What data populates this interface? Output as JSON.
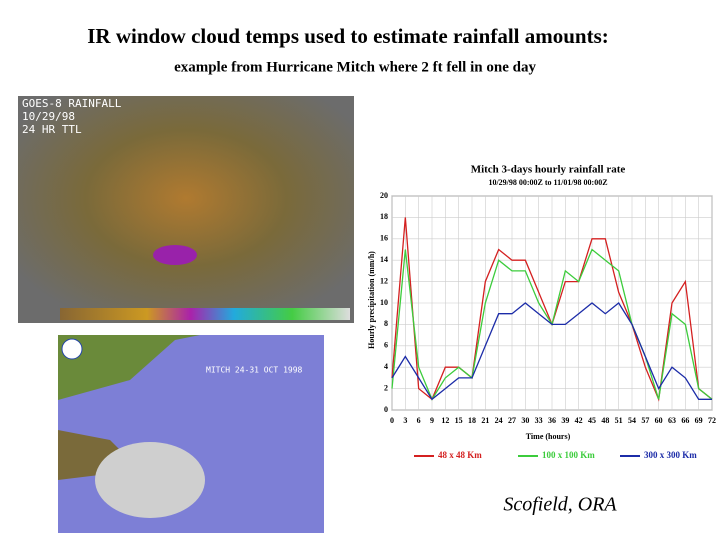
{
  "header": {
    "title": "IR window cloud temps used to estimate rainfall amounts:",
    "subtitle": "example from Hurricane Mitch where 2 ft fell in one day"
  },
  "images": [
    {
      "lines": [
        "GOES-8 RAINFALL",
        "10/29/98",
        "24 HR TTL"
      ]
    },
    {
      "lines": [
        "MITCH  24-31 OCT 1998"
      ]
    }
  ],
  "credit": "Scofield, ORA",
  "chart_data": {
    "type": "line",
    "title": "Mitch 3-days hourly rainfall rate",
    "subtitle": "10/29/98 00:00Z to 11/01/98 00:00Z",
    "x_label": "Time (hours)",
    "y_label": "Hourly precipitation (mm/h)",
    "x": [
      0,
      3,
      6,
      9,
      12,
      15,
      18,
      21,
      24,
      27,
      30,
      33,
      36,
      39,
      42,
      45,
      48,
      51,
      54,
      57,
      60,
      63,
      66,
      69,
      72
    ],
    "series": [
      {
        "name": "48 x 48 Km",
        "color": "#d42020",
        "values": [
          3,
          18,
          2,
          1,
          4,
          4,
          3,
          12,
          15,
          14,
          14,
          11,
          8,
          12,
          12,
          16,
          16,
          11,
          8,
          4,
          1,
          10,
          12,
          2,
          1
        ]
      },
      {
        "name": "100 x 100 Km",
        "color": "#3ccc3c",
        "values": [
          2,
          15,
          4,
          1,
          3,
          4,
          3,
          10,
          14,
          13,
          13,
          10,
          8,
          13,
          12,
          15,
          14,
          13,
          8,
          5,
          1,
          9,
          8,
          2,
          1
        ]
      },
      {
        "name": "300 x 300 Km",
        "color": "#1c2ca8",
        "values": [
          3,
          5,
          3,
          1,
          2,
          3,
          3,
          6,
          9,
          9,
          10,
          9,
          8,
          8,
          9,
          10,
          9,
          10,
          8,
          5,
          2,
          4,
          3,
          1,
          1
        ]
      }
    ],
    "xlim": [
      0,
      72
    ],
    "xticks": [
      0,
      3,
      6,
      9,
      12,
      15,
      18,
      21,
      24,
      27,
      30,
      33,
      36,
      39,
      42,
      45,
      48,
      51,
      54,
      57,
      60,
      63,
      66,
      69,
      72
    ],
    "ylim": [
      0,
      20
    ],
    "yticks": [
      0,
      2,
      4,
      6,
      8,
      10,
      12,
      14,
      16,
      18,
      20
    ],
    "grid": true
  }
}
